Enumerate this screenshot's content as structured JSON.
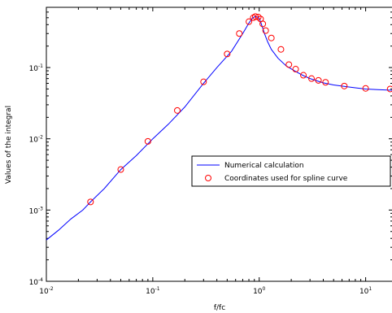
{
  "chart_data": {
    "type": "line",
    "title": "",
    "xlabel": "f/fc",
    "ylabel": "Values of the integral",
    "xscale": "log",
    "yscale": "log",
    "xlim": [
      0.01,
      18
    ],
    "ylim": [
      0.0001,
      0.7
    ],
    "x_ticks": [
      {
        "base": "10",
        "exp": "-2",
        "value": 0.01
      },
      {
        "base": "10",
        "exp": "-1",
        "value": 0.1
      },
      {
        "base": "10",
        "exp": "0",
        "value": 1
      },
      {
        "base": "10",
        "exp": "1",
        "value": 10
      }
    ],
    "y_ticks": [
      {
        "base": "10",
        "exp": "-4",
        "value": 0.0001
      },
      {
        "base": "10",
        "exp": "-3",
        "value": 0.001
      },
      {
        "base": "10",
        "exp": "-2",
        "value": 0.01
      },
      {
        "base": "10",
        "exp": "-1",
        "value": 0.1
      }
    ],
    "grid": false,
    "legend_position": "center-right",
    "series": [
      {
        "name": "Numerical calculation",
        "style": "line",
        "color": "#0000ff",
        "x": [
          0.01,
          0.013,
          0.017,
          0.022,
          0.026,
          0.035,
          0.05,
          0.07,
          0.1,
          0.14,
          0.2,
          0.3,
          0.4,
          0.55,
          0.7,
          0.8,
          0.87,
          0.92,
          0.97,
          1.0,
          1.03,
          1.07,
          1.12,
          1.2,
          1.3,
          1.5,
          1.8,
          2.2,
          2.6,
          3.0,
          3.5,
          4.0,
          5.0,
          6.5,
          8.0,
          10.0,
          13.0,
          18.0
        ],
        "y": [
          0.00038,
          0.00052,
          0.00075,
          0.001,
          0.0013,
          0.002,
          0.0037,
          0.0058,
          0.01,
          0.016,
          0.028,
          0.06,
          0.1,
          0.17,
          0.3,
          0.42,
          0.5,
          0.52,
          0.51,
          0.49,
          0.44,
          0.37,
          0.3,
          0.23,
          0.18,
          0.135,
          0.105,
          0.088,
          0.077,
          0.07,
          0.065,
          0.061,
          0.057,
          0.054,
          0.052,
          0.05,
          0.049,
          0.048
        ]
      },
      {
        "name": "Coordinates used for spline curve",
        "style": "marker",
        "marker": "circle",
        "color": "#ff0000",
        "x": [
          0.026,
          0.05,
          0.09,
          0.17,
          0.3,
          0.5,
          0.65,
          0.8,
          0.88,
          0.92,
          0.98,
          1.03,
          1.08,
          1.15,
          1.3,
          1.6,
          1.9,
          2.2,
          2.6,
          3.1,
          3.6,
          4.2,
          6.3,
          10.0,
          17.0
        ],
        "y": [
          0.0013,
          0.0037,
          0.0092,
          0.025,
          0.063,
          0.155,
          0.3,
          0.44,
          0.5,
          0.52,
          0.51,
          0.48,
          0.41,
          0.33,
          0.26,
          0.18,
          0.11,
          0.095,
          0.078,
          0.07,
          0.066,
          0.062,
          0.055,
          0.051,
          0.05
        ]
      }
    ]
  }
}
